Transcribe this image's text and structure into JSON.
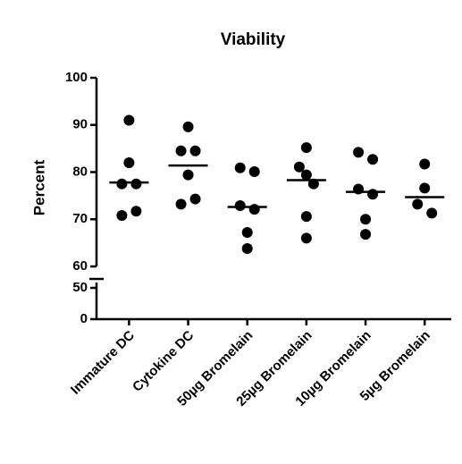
{
  "chart_data": {
    "type": "scatter_dot",
    "title": "Viability",
    "y_label": "Percent",
    "categories": [
      "Immature DC",
      "Cytokine DC",
      "50µg Bromelain",
      "25µg Bromelain",
      "10µg Bromelain",
      "5µg Bromelain"
    ],
    "values": [
      [
        91,
        82,
        77.5,
        77.5,
        70.8,
        71.7
      ],
      [
        89.6,
        84.5,
        84.5,
        79.4,
        73.2,
        74.3
      ],
      [
        80.9,
        80.1,
        72.9,
        72.1,
        67.2,
        63.8
      ],
      [
        85.2,
        81.1,
        79.4,
        77.5,
        70.6,
        66
      ],
      [
        84.2,
        82.7,
        76.4,
        75.3,
        70,
        66.8
      ],
      [
        81.7,
        76.6,
        73.2,
        71.3
      ]
    ],
    "medians": [
      77.8,
      81.4,
      72.6,
      78.3,
      75.8,
      74.7
    ],
    "color": "#000000",
    "ylim": [
      0,
      100
    ],
    "axis_break": [
      50,
      60
    ],
    "yticks": [
      0,
      50,
      60,
      70,
      80,
      90,
      100
    ]
  }
}
